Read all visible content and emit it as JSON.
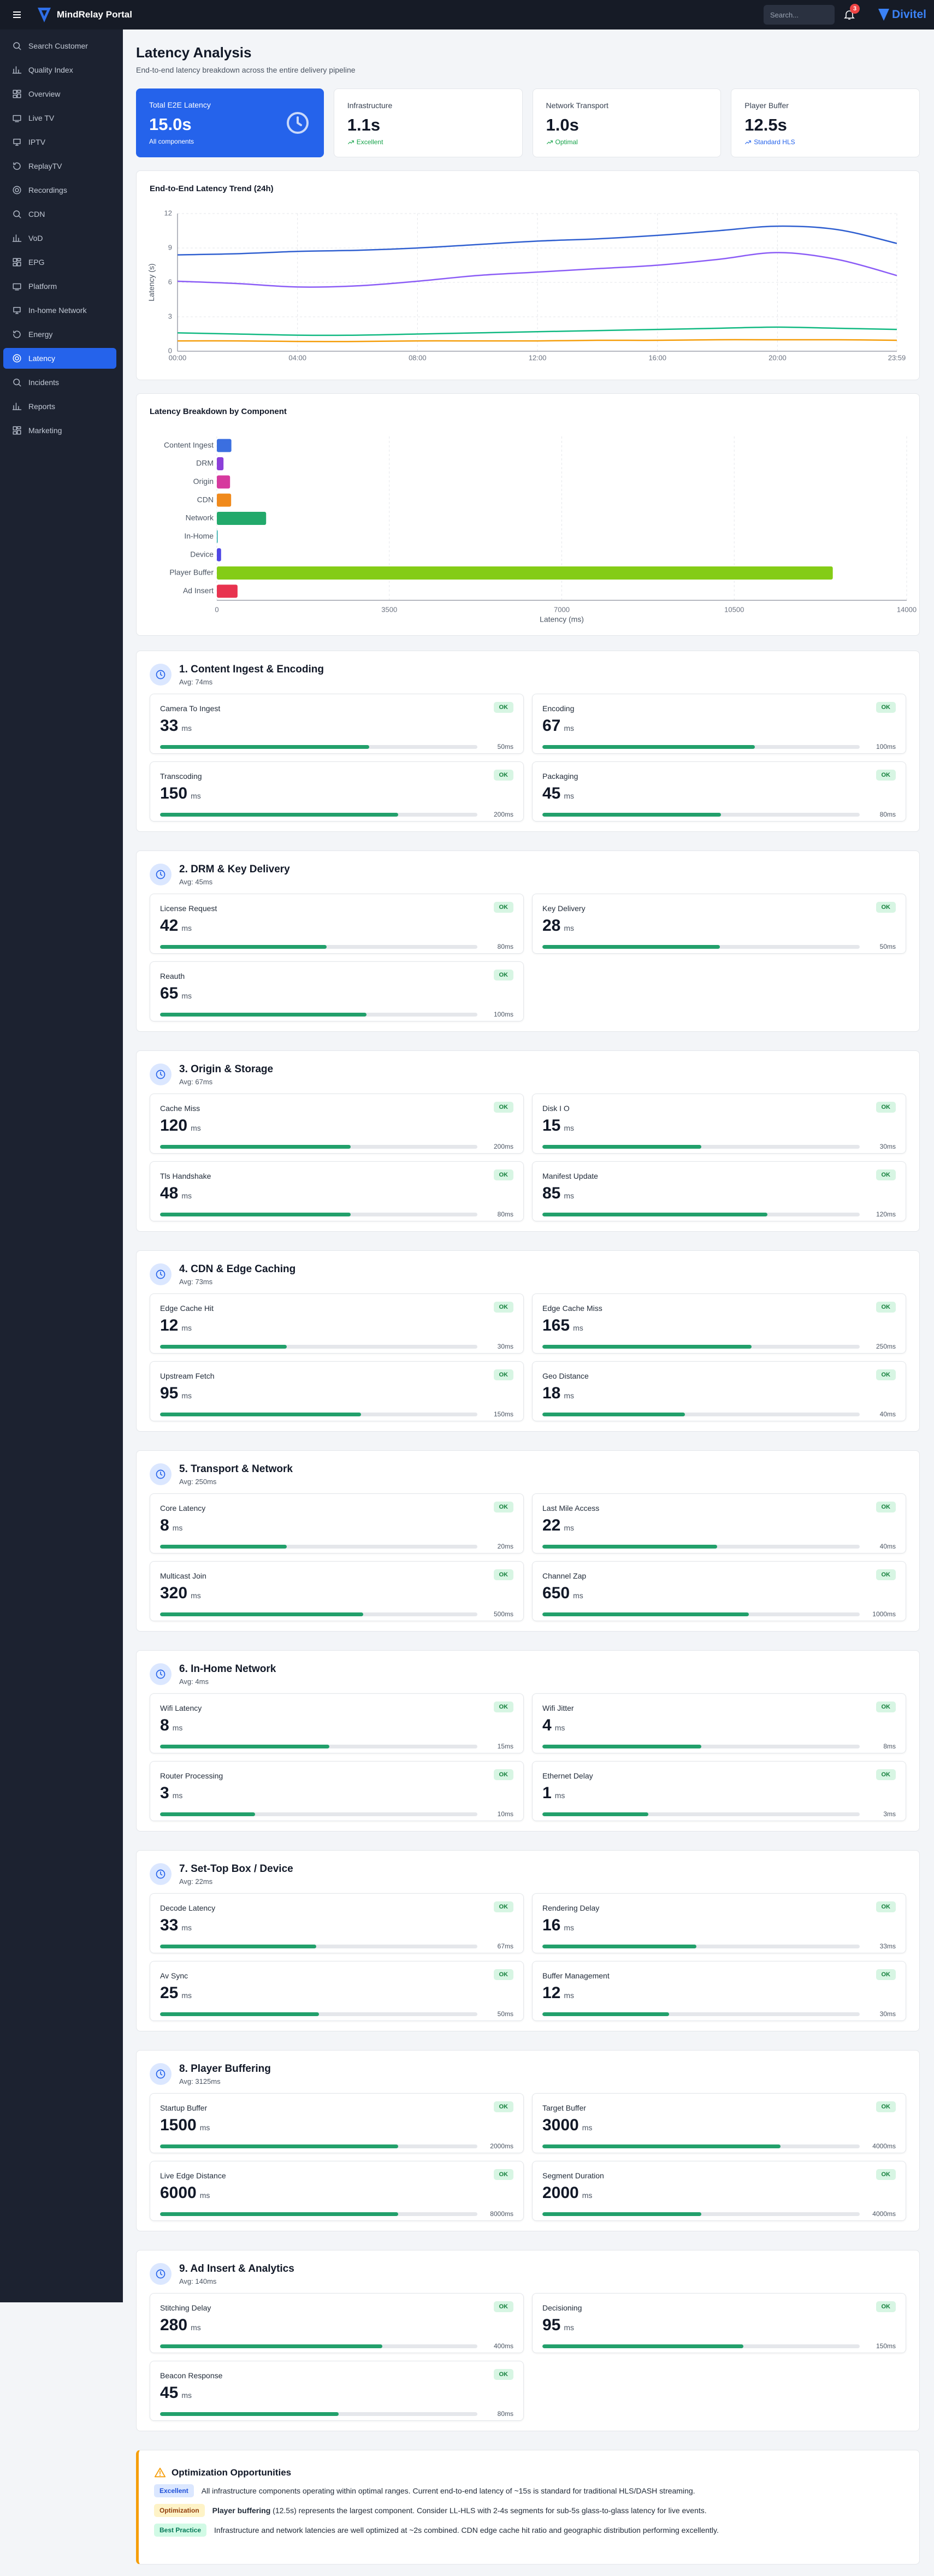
{
  "topbar": {
    "brand": "MindRelay Portal",
    "search_placeholder": "Search...",
    "notifications": "3",
    "logo": "Divitel"
  },
  "sidebar": {
    "items": [
      "Search Customer",
      "Quality Index",
      "Overview",
      "Live TV",
      "IPTV",
      "ReplayTV",
      "Recordings",
      "CDN",
      "VoD",
      "EPG",
      "Platform",
      "In-home Network",
      "Energy",
      "Latency",
      "Incidents",
      "Reports",
      "Marketing"
    ],
    "active": "Latency"
  },
  "page": {
    "title": "Latency Analysis",
    "subtitle": "End-to-end latency breakdown across the entire delivery pipeline"
  },
  "kpis": [
    {
      "label": "Total E2E Latency",
      "value": "15.0s",
      "note": "All components",
      "fill": "#2563eb"
    },
    {
      "label": "Infrastructure",
      "value": "1.1s",
      "note": "Excellent",
      "note_color": "#16a34a"
    },
    {
      "label": "Network Transport",
      "value": "1.0s",
      "note": "Optimal",
      "note_color": "#16a34a"
    },
    {
      "label": "Player Buffer",
      "value": "12.5s",
      "note": "Standard HLS",
      "note_color": "#2563eb"
    }
  ],
  "chart_data": [
    {
      "type": "line",
      "title": "End-to-End Latency Trend (24h)",
      "y_label": "Latency (s)",
      "x": [
        0,
        2,
        4,
        6,
        8,
        10,
        12,
        14,
        16,
        18,
        20,
        22,
        23.98
      ],
      "xlim": [
        0,
        23.98
      ],
      "xticks": [
        {
          "value": 0,
          "label": "00:00"
        },
        {
          "value": 4,
          "label": "04:00"
        },
        {
          "value": 8,
          "label": "08:00"
        },
        {
          "value": 12,
          "label": "12:00"
        },
        {
          "value": 16,
          "label": "16:00"
        },
        {
          "value": 20,
          "label": "20:00"
        },
        {
          "value": 23.98,
          "label": "23:59"
        }
      ],
      "ylim": [
        0,
        12
      ],
      "yticks": [
        0,
        3,
        6,
        9,
        12
      ],
      "grid": true,
      "series": [
        {
          "color": "#2f5fd0",
          "values": [
            8.4,
            8.5,
            8.7,
            8.8,
            9.0,
            9.3,
            9.6,
            9.8,
            10.1,
            10.5,
            10.9,
            10.6,
            9.4
          ]
        },
        {
          "color": "#8b5cf6",
          "values": [
            6.1,
            5.9,
            5.6,
            5.7,
            6.1,
            6.6,
            6.9,
            7.2,
            7.5,
            8.0,
            8.6,
            8.0,
            6.6
          ]
        },
        {
          "color": "#10b981",
          "values": [
            1.6,
            1.5,
            1.4,
            1.4,
            1.5,
            1.6,
            1.7,
            1.8,
            1.9,
            2.0,
            2.1,
            2.0,
            1.9
          ]
        },
        {
          "color": "#f59e0b",
          "values": [
            0.9,
            0.9,
            0.85,
            0.85,
            0.9,
            0.9,
            0.9,
            0.95,
            0.95,
            1.0,
            1.0,
            1.0,
            0.95
          ]
        }
      ]
    },
    {
      "type": "bar",
      "orientation": "horizontal",
      "title": "Latency Breakdown by Component",
      "x_label": "Latency (ms)",
      "categories": [
        "Content Ingest",
        "DRM",
        "Origin",
        "CDN",
        "Network",
        "In-Home",
        "Device",
        "Player Buffer",
        "Ad Insert"
      ],
      "values": [
        295,
        135,
        268,
        290,
        1000,
        16,
        86,
        12500,
        420
      ],
      "colors": [
        "#3b6fe0",
        "#8b3fd9",
        "#d63a9e",
        "#f08a1c",
        "#22a96b",
        "#14a3a3",
        "#4f46e5",
        "#84cc16",
        "#e8334f"
      ],
      "xlim": [
        0,
        14000
      ],
      "xticks": [
        0,
        3500,
        7000,
        10500,
        14000
      ],
      "grid": true
    }
  ],
  "unit": "ms",
  "status": "OK",
  "sections": [
    {
      "title": "1. Content Ingest & Encoding",
      "avg": "Avg: 74ms",
      "metrics": [
        {
          "name": "Camera To Ingest",
          "value": 33,
          "target": 50,
          "target_label": "50ms"
        },
        {
          "name": "Encoding",
          "value": 67,
          "target": 100,
          "target_label": "100ms"
        },
        {
          "name": "Transcoding",
          "value": 150,
          "target": 200,
          "target_label": "200ms"
        },
        {
          "name": "Packaging",
          "value": 45,
          "target": 80,
          "target_label": "80ms"
        }
      ]
    },
    {
      "title": "2. DRM & Key Delivery",
      "avg": "Avg: 45ms",
      "metrics": [
        {
          "name": "License Request",
          "value": 42,
          "target": 80,
          "target_label": "80ms"
        },
        {
          "name": "Key Delivery",
          "value": 28,
          "target": 50,
          "target_label": "50ms"
        },
        {
          "name": "Reauth",
          "value": 65,
          "target": 100,
          "target_label": "100ms"
        }
      ]
    },
    {
      "title": "3. Origin & Storage",
      "avg": "Avg: 67ms",
      "metrics": [
        {
          "name": "Cache Miss",
          "value": 120,
          "target": 200,
          "target_label": "200ms"
        },
        {
          "name": "Disk I O",
          "value": 15,
          "target": 30,
          "target_label": "30ms"
        },
        {
          "name": "Tls Handshake",
          "value": 48,
          "target": 80,
          "target_label": "80ms"
        },
        {
          "name": "Manifest Update",
          "value": 85,
          "target": 120,
          "target_label": "120ms"
        }
      ]
    },
    {
      "title": "4. CDN & Edge Caching",
      "avg": "Avg: 73ms",
      "metrics": [
        {
          "name": "Edge Cache Hit",
          "value": 12,
          "target": 30,
          "target_label": "30ms"
        },
        {
          "name": "Edge Cache Miss",
          "value": 165,
          "target": 250,
          "target_label": "250ms"
        },
        {
          "name": "Upstream Fetch",
          "value": 95,
          "target": 150,
          "target_label": "150ms"
        },
        {
          "name": "Geo Distance",
          "value": 18,
          "target": 40,
          "target_label": "40ms"
        }
      ]
    },
    {
      "title": "5. Transport & Network",
      "avg": "Avg: 250ms",
      "metrics": [
        {
          "name": "Core Latency",
          "value": 8,
          "target": 20,
          "target_label": "20ms"
        },
        {
          "name": "Last Mile Access",
          "value": 22,
          "target": 40,
          "target_label": "40ms"
        },
        {
          "name": "Multicast Join",
          "value": 320,
          "target": 500,
          "target_label": "500ms"
        },
        {
          "name": "Channel Zap",
          "value": 650,
          "target": 1000,
          "target_label": "1000ms"
        }
      ]
    },
    {
      "title": "6. In-Home Network",
      "avg": "Avg: 4ms",
      "metrics": [
        {
          "name": "Wifi Latency",
          "value": 8,
          "target": 15,
          "target_label": "15ms"
        },
        {
          "name": "Wifi Jitter",
          "value": 4,
          "target": 8,
          "target_label": "8ms"
        },
        {
          "name": "Router Processing",
          "value": 3,
          "target": 10,
          "target_label": "10ms"
        },
        {
          "name": "Ethernet Delay",
          "value": 1,
          "target": 3,
          "target_label": "3ms"
        }
      ]
    },
    {
      "title": "7. Set-Top Box / Device",
      "avg": "Avg: 22ms",
      "metrics": [
        {
          "name": "Decode Latency",
          "value": 33,
          "target": 67,
          "target_label": "67ms"
        },
        {
          "name": "Rendering Delay",
          "value": 16,
          "target": 33,
          "target_label": "33ms"
        },
        {
          "name": "Av Sync",
          "value": 25,
          "target": 50,
          "target_label": "50ms"
        },
        {
          "name": "Buffer Management",
          "value": 12,
          "target": 30,
          "target_label": "30ms"
        }
      ]
    },
    {
      "title": "8. Player Buffering",
      "avg": "Avg: 3125ms",
      "metrics": [
        {
          "name": "Startup Buffer",
          "value": 1500,
          "target": 2000,
          "target_label": "2000ms"
        },
        {
          "name": "Target Buffer",
          "value": 3000,
          "target": 4000,
          "target_label": "4000ms"
        },
        {
          "name": "Live Edge Distance",
          "value": 6000,
          "target": 8000,
          "target_label": "8000ms"
        },
        {
          "name": "Segment Duration",
          "value": 2000,
          "target": 4000,
          "target_label": "4000ms"
        }
      ]
    },
    {
      "title": "9. Ad Insert & Analytics",
      "avg": "Avg: 140ms",
      "metrics": [
        {
          "name": "Stitching Delay",
          "value": 280,
          "target": 400,
          "target_label": "400ms"
        },
        {
          "name": "Decisioning",
          "value": 95,
          "target": 150,
          "target_label": "150ms"
        },
        {
          "name": "Beacon Response",
          "value": 45,
          "target": 80,
          "target_label": "80ms"
        }
      ]
    }
  ],
  "optimization": {
    "title": "Optimization Opportunities",
    "items": [
      {
        "badge": "Excellent",
        "color": "#1d4ed8",
        "background": "#dbe7ff",
        "text": "All infrastructure components operating within optimal ranges. Current end-to-end latency of ~15s is standard for traditional HLS/DASH streaming."
      },
      {
        "badge": "Optimization",
        "color": "#92400e",
        "background": "#fef3c7",
        "bold": "Player buffering",
        "text": " (12.5s) represents the largest component. Consider LL-HLS with 2-4s segments for sub-5s glass-to-glass latency for live events."
      },
      {
        "badge": "Best Practice",
        "color": "#047857",
        "background": "#d1fae5",
        "text": "Infrastructure and network latencies are well optimized at ~2s combined. CDN edge cache hit ratio and geographic distribution performing excellently."
      }
    ]
  }
}
